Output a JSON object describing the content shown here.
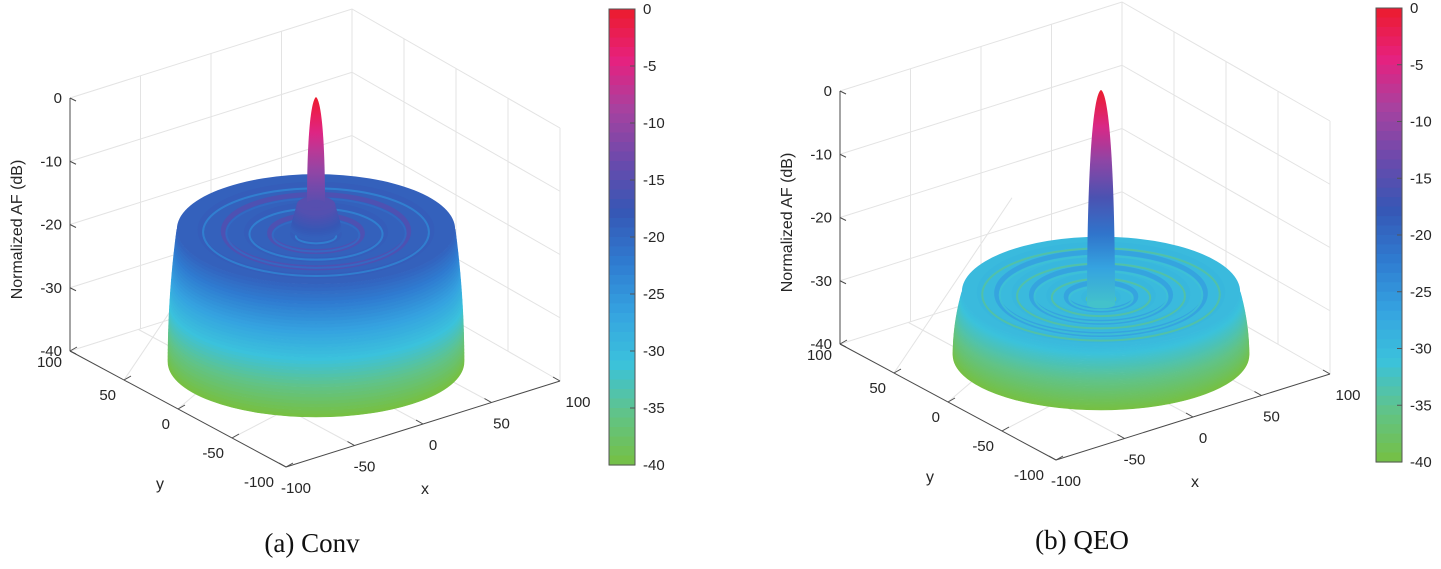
{
  "figure": {
    "captions": [
      "(a) Conv",
      "(b) QEO"
    ]
  },
  "colors": {
    "colormap": [
      "#76c043",
      "#61c387",
      "#3bc2dc",
      "#35a3e0",
      "#2f7bd0",
      "#3657b5",
      "#6b4aac",
      "#a642a0",
      "#e6217f",
      "#ec1c2c"
    ],
    "axis": "#4a4a4a",
    "grid": "#e3e3e3"
  },
  "chart_data": [
    {
      "type": "surface3d",
      "title": "",
      "caption": "(a) Conv",
      "zlabel": "Normalized AF (dB)",
      "xlabel": "x",
      "ylabel": "y",
      "zlim": [
        -40,
        0
      ],
      "xlim": [
        -100,
        100
      ],
      "ylim": [
        -100,
        100
      ],
      "zticks": [
        "0",
        "-10",
        "-20",
        "-30",
        "-40"
      ],
      "xticks": [
        "-100",
        "-50",
        "0",
        "50",
        "100"
      ],
      "yticks": [
        "100",
        "50",
        "0",
        "-50",
        "-100"
      ],
      "colorbar": {
        "ticks": [
          "0",
          "-5",
          "-10",
          "-15",
          "-20",
          "-25",
          "-30",
          "-35",
          "-40"
        ],
        "range": [
          -40,
          0
        ]
      },
      "surface": {
        "aperture_radius": 60,
        "floor_level_db": -40,
        "sidelobe_plateau_db": -19,
        "first_sidelobe_db": -15,
        "main_lobe_peak_db": 0,
        "main_lobe_width": 3,
        "ring_count": 5
      }
    },
    {
      "type": "surface3d",
      "title": "",
      "caption": "(b) QEO",
      "zlabel": "Normalized AF (dB)",
      "xlabel": "x",
      "ylabel": "y",
      "zlim": [
        -40,
        0
      ],
      "xlim": [
        -100,
        100
      ],
      "ylim": [
        -100,
        100
      ],
      "zticks": [
        "0",
        "-10",
        "-20",
        "-30",
        "-40"
      ],
      "xticks": [
        "-100",
        "-50",
        "0",
        "50",
        "100"
      ],
      "yticks": [
        "100",
        "50",
        "0",
        "-50",
        "-100"
      ],
      "colorbar": {
        "ticks": [
          "0",
          "-5",
          "-10",
          "-15",
          "-20",
          "-25",
          "-30",
          "-35",
          "-40"
        ],
        "range": [
          -40,
          0
        ]
      },
      "surface": {
        "aperture_radius": 60,
        "floor_level_db": -40,
        "sidelobe_plateau_db": -30,
        "first_sidelobe_db": -30,
        "main_lobe_peak_db": 0,
        "main_lobe_width": 3,
        "ring_count": 7
      }
    }
  ]
}
